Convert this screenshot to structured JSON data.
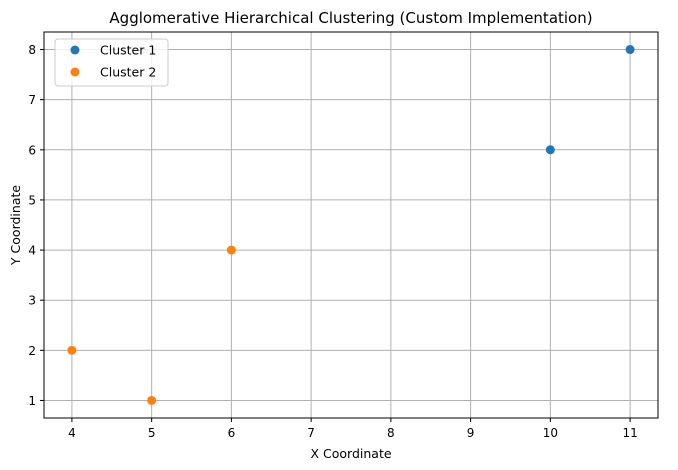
{
  "chart_data": {
    "type": "scatter",
    "title": "Agglomerative Hierarchical Clustering (Custom Implementation)",
    "xlabel": "X Coordinate",
    "ylabel": "Y Coordinate",
    "xlim": [
      3.65,
      11.35
    ],
    "ylim": [
      0.65,
      8.35
    ],
    "xticks": [
      4,
      5,
      6,
      7,
      8,
      9,
      10,
      11
    ],
    "yticks": [
      1,
      2,
      3,
      4,
      5,
      6,
      7,
      8
    ],
    "grid": true,
    "legend_position": "top-left",
    "series": [
      {
        "name": "Cluster 1",
        "color": "#1f77b4",
        "points": [
          {
            "x": 10,
            "y": 6
          },
          {
            "x": 11,
            "y": 8
          }
        ]
      },
      {
        "name": "Cluster 2",
        "color": "#ff7f0e",
        "points": [
          {
            "x": 4,
            "y": 2
          },
          {
            "x": 5,
            "y": 1
          },
          {
            "x": 6,
            "y": 4
          }
        ]
      }
    ]
  }
}
